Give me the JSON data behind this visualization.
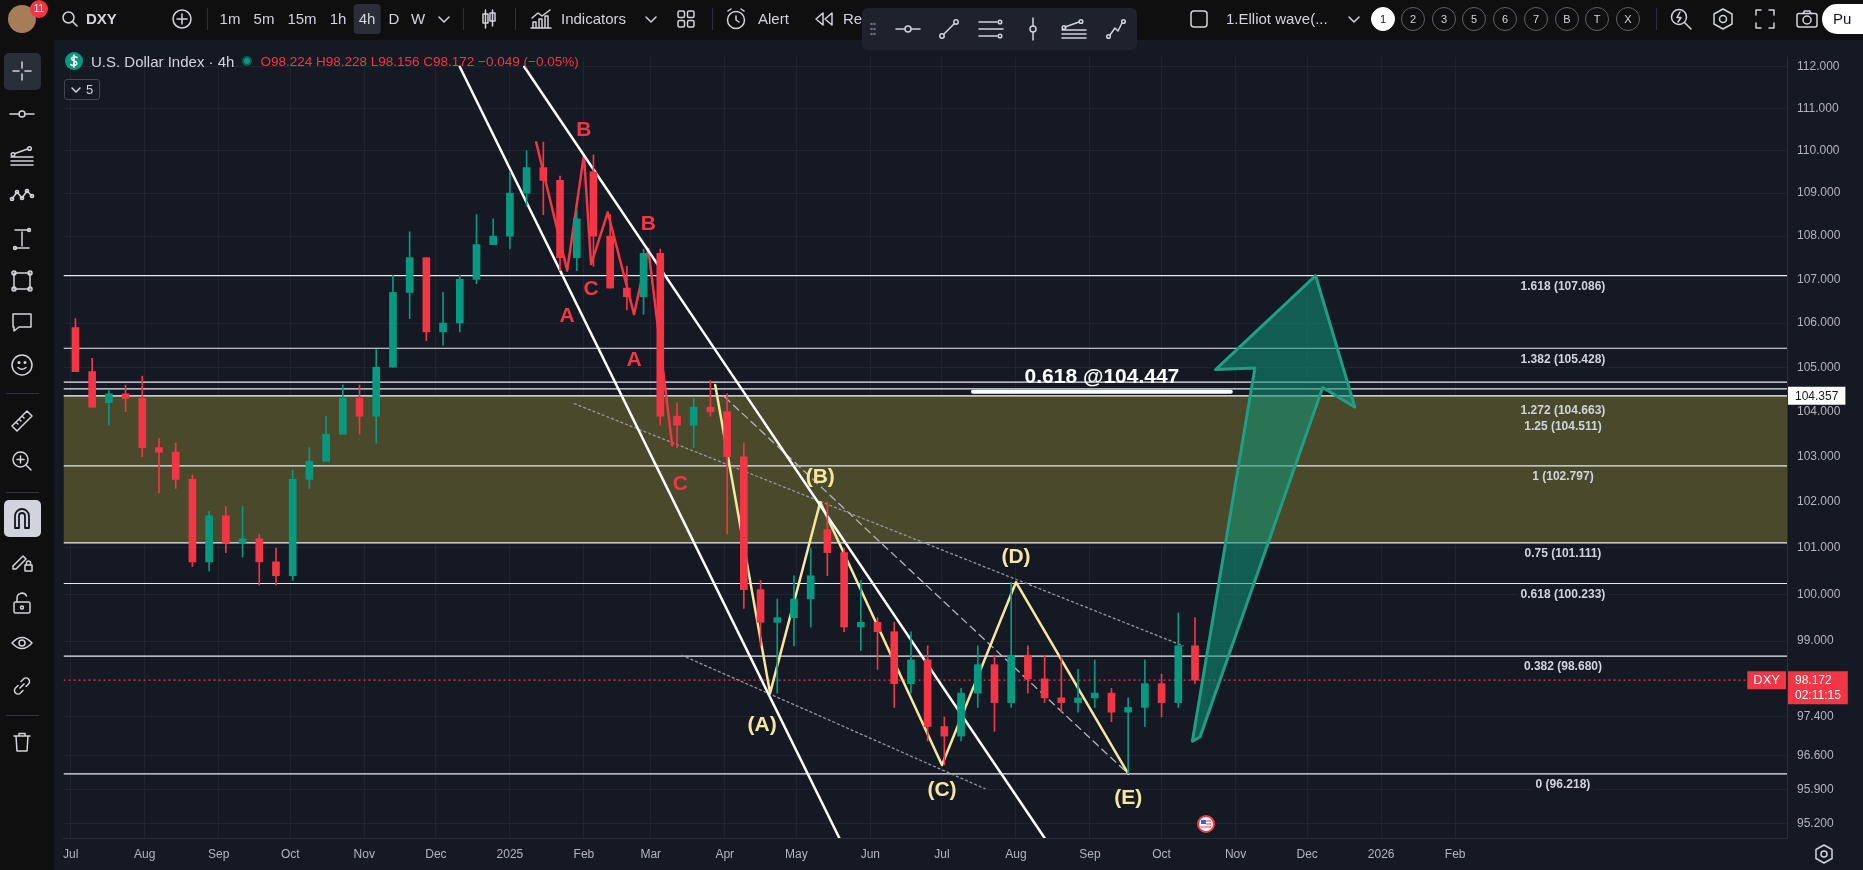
{
  "chart_data": {
    "type": "candlestick",
    "title": "U.S. Dollar Index · 4h",
    "subtitle": "O98.224 H98.228 L98.156 C98.172 −0.049 (−0.05%)",
    "x": [
      "2024-07-03",
      "2024-07-10",
      "2024-07-17",
      "2024-07-24",
      "2024-07-31",
      "2024-08-07",
      "2024-08-14",
      "2024-08-21",
      "2024-08-28",
      "2024-09-04",
      "2024-09-11",
      "2024-09-18",
      "2024-09-25",
      "2024-10-02",
      "2024-10-09",
      "2024-10-16",
      "2024-10-23",
      "2024-10-30",
      "2024-11-06",
      "2024-11-13",
      "2024-11-20",
      "2024-11-27",
      "2024-12-04",
      "2024-12-11",
      "2024-12-18",
      "2024-12-25",
      "2025-01-01",
      "2025-01-08",
      "2025-01-15",
      "2025-01-22",
      "2025-01-29",
      "2025-02-05",
      "2025-02-12",
      "2025-02-19",
      "2025-02-26",
      "2025-03-05",
      "2025-03-12",
      "2025-03-19",
      "2025-03-26",
      "2025-04-02",
      "2025-04-09",
      "2025-04-16",
      "2025-04-23",
      "2025-04-30",
      "2025-05-07",
      "2025-05-14",
      "2025-05-21",
      "2025-05-28",
      "2025-06-04",
      "2025-06-11",
      "2025-06-18",
      "2025-06-25",
      "2025-07-02",
      "2025-07-09",
      "2025-07-16",
      "2025-07-23",
      "2025-07-30",
      "2025-08-06",
      "2025-08-13",
      "2025-08-20",
      "2025-08-27",
      "2025-09-03",
      "2025-09-10",
      "2025-09-17",
      "2025-09-24",
      "2025-10-01",
      "2025-10-08",
      "2025-10-15"
    ],
    "ohlc": [
      [
        105.9,
        106.1,
        104.9,
        104.9
      ],
      [
        104.9,
        105.2,
        104.1,
        104.1
      ],
      [
        104.2,
        104.5,
        103.7,
        104.4
      ],
      [
        104.4,
        104.6,
        104.0,
        104.3
      ],
      [
        104.3,
        104.8,
        103.0,
        103.2
      ],
      [
        103.2,
        103.4,
        102.2,
        103.1
      ],
      [
        103.1,
        103.3,
        102.3,
        102.5
      ],
      [
        102.5,
        102.6,
        100.6,
        100.7
      ],
      [
        100.7,
        101.8,
        100.5,
        101.7
      ],
      [
        101.7,
        101.9,
        100.9,
        101.1
      ],
      [
        101.1,
        101.9,
        100.8,
        101.2
      ],
      [
        101.2,
        101.3,
        100.2,
        100.7
      ],
      [
        100.7,
        101.0,
        100.2,
        100.4
      ],
      [
        100.4,
        102.7,
        100.3,
        102.5
      ],
      [
        102.5,
        103.2,
        102.3,
        102.9
      ],
      [
        102.9,
        103.9,
        102.9,
        103.5
      ],
      [
        103.5,
        104.6,
        103.5,
        104.3
      ],
      [
        104.3,
        104.6,
        103.5,
        103.9
      ],
      [
        103.9,
        105.4,
        103.3,
        105.0
      ],
      [
        105.0,
        107.1,
        105.0,
        106.7
      ],
      [
        106.7,
        108.1,
        106.1,
        107.5
      ],
      [
        107.5,
        107.5,
        105.6,
        105.8
      ],
      [
        105.8,
        106.7,
        105.5,
        106.0
      ],
      [
        106.0,
        107.1,
        105.8,
        107.0
      ],
      [
        107.0,
        108.5,
        106.9,
        107.8
      ],
      [
        107.8,
        108.4,
        107.8,
        108.0
      ],
      [
        108.0,
        109.5,
        107.7,
        109.0
      ],
      [
        109.0,
        110.0,
        108.7,
        109.6
      ],
      [
        109.6,
        110.2,
        108.5,
        109.3
      ],
      [
        109.3,
        109.4,
        107.2,
        107.5
      ],
      [
        107.5,
        108.6,
        107.2,
        108.4
      ],
      [
        109.5,
        109.9,
        107.3,
        108.0
      ],
      [
        108.0,
        108.5,
        106.8,
        106.8
      ],
      [
        106.8,
        107.3,
        106.3,
        106.6
      ],
      [
        106.6,
        107.7,
        106.2,
        107.6
      ],
      [
        107.6,
        107.7,
        103.7,
        103.9
      ],
      [
        103.9,
        104.2,
        103.2,
        103.7
      ],
      [
        103.7,
        104.3,
        103.2,
        104.1
      ],
      [
        104.1,
        104.7,
        103.9,
        104.0
      ],
      [
        104.0,
        104.4,
        101.3,
        103.0
      ],
      [
        103.0,
        103.3,
        99.7,
        100.1
      ],
      [
        100.1,
        100.3,
        98.9,
        99.4
      ],
      [
        99.4,
        99.9,
        97.9,
        99.5
      ],
      [
        99.5,
        100.4,
        98.9,
        99.9
      ],
      [
        99.9,
        101.0,
        99.3,
        100.4
      ],
      [
        101.4,
        102.0,
        100.4,
        100.9
      ],
      [
        100.9,
        101.0,
        99.2,
        99.3
      ],
      [
        99.3,
        100.3,
        98.8,
        99.4
      ],
      [
        99.4,
        99.5,
        98.4,
        99.2
      ],
      [
        99.2,
        99.4,
        97.6,
        98.1
      ],
      [
        98.1,
        99.2,
        97.9,
        98.6
      ],
      [
        98.6,
        98.9,
        96.9,
        97.2
      ],
      [
        97.2,
        97.4,
        96.4,
        97.0
      ],
      [
        97.0,
        98.0,
        96.9,
        97.9
      ],
      [
        97.9,
        98.9,
        97.6,
        98.5
      ],
      [
        98.5,
        98.7,
        97.1,
        97.7
      ],
      [
        97.7,
        100.26,
        97.6,
        98.7
      ],
      [
        98.7,
        98.9,
        97.9,
        98.2
      ],
      [
        98.2,
        98.7,
        97.7,
        97.8
      ],
      [
        97.8,
        98.7,
        97.5,
        97.7
      ],
      [
        97.7,
        98.4,
        97.5,
        97.8
      ],
      [
        97.8,
        98.6,
        97.6,
        97.9
      ],
      [
        97.9,
        98.0,
        97.3,
        97.5
      ],
      [
        97.5,
        97.8,
        96.22,
        97.6
      ],
      [
        97.6,
        98.6,
        97.2,
        98.1
      ],
      [
        98.1,
        98.3,
        97.4,
        97.7
      ],
      [
        97.7,
        99.6,
        97.6,
        98.9
      ],
      [
        98.9,
        99.5,
        98.1,
        98.172
      ]
    ],
    "colors": [
      "#f23645",
      "#f23645",
      "#089981",
      "#f23645",
      "#f23645",
      "#f23645",
      "#f23645",
      "#f23645",
      "#089981",
      "#f23645",
      "#089981",
      "#f23645",
      "#f23645",
      "#089981",
      "#089981",
      "#089981",
      "#089981",
      "#f23645",
      "#089981",
      "#089981",
      "#089981",
      "#f23645",
      "#089981",
      "#089981",
      "#089981",
      "#089981",
      "#089981",
      "#089981",
      "#f23645",
      "#f23645",
      "#089981",
      "#f23645",
      "#f23645",
      "#f23645",
      "#089981",
      "#f23645",
      "#f23645",
      "#089981",
      "#f23645",
      "#f23645",
      "#f23645",
      "#f23645",
      "#089981",
      "#089981",
      "#089981",
      "#f23645",
      "#f23645",
      "#089981",
      "#f23645",
      "#f23645",
      "#089981",
      "#f23645",
      "#f23645",
      "#089981",
      "#089981",
      "#f23645",
      "#089981",
      "#f23645",
      "#f23645",
      "#f23645",
      "#089981",
      "#089981",
      "#f23645",
      "#089981",
      "#089981",
      "#f23645",
      "#089981",
      "#f23645"
    ],
    "series": [
      {
        "type": "line",
        "x": [
          "2024-12-11",
          "2025-05-19"
        ],
        "values": [
          112.0,
          94.9
        ],
        "color": "#ffffff"
      },
      {
        "type": "line",
        "x": [
          "2025-01-07",
          "2025-08-13"
        ],
        "values": [
          112.0,
          94.9
        ],
        "color": "#ffffff"
      },
      {
        "type": "line",
        "x": [
          "2025-01-12",
          "2025-01-25",
          "2025-02-01",
          "2025-02-04",
          "2025-02-11",
          "2025-02-22",
          "2025-02-28",
          "2025-03-10"
        ],
        "values": [
          110.2,
          107.2,
          109.9,
          107.35,
          108.55,
          106.2,
          107.7,
          103.25
        ],
        "value_labels": [
          null,
          "A",
          "B",
          "C",
          null,
          "A",
          "B",
          "C"
        ],
        "color": "#f23645"
      },
      {
        "type": "line",
        "x": [
          "2025-03-28",
          "2025-04-20",
          "2025-05-11",
          "2025-07-01",
          "2025-08-01",
          "2025-09-17"
        ],
        "values": [
          104.6,
          97.9,
          102.0,
          96.4,
          100.26,
          96.22
        ],
        "value_labels": [
          null,
          "(A)",
          "(B)",
          "(C)",
          "(D)",
          "(E)"
        ],
        "color": "#f5e6a0"
      },
      {
        "type": "line",
        "x": [
          "2025-04-01",
          "2025-09-17"
        ],
        "values": [
          104.33,
          96.22
        ],
        "color": "#b2b5be",
        "line_style": "dashed"
      },
      {
        "type": "line",
        "x": [
          "2025-01-28",
          "2025-10-10"
        ],
        "values": [
          104.18,
          98.9
        ],
        "color": "#9598a1",
        "line_style": "dotted"
      },
      {
        "type": "line",
        "x": [
          "2025-03-14",
          "2025-07-19"
        ],
        "values": [
          98.7,
          95.91
        ],
        "color": "#9598a1",
        "line_style": "dotted"
      },
      {
        "type": "line",
        "name": "0.618 @104.447",
        "x": [
          "2025-07-14",
          "2025-10-30"
        ],
        "values": [
          104.447,
          104.447
        ],
        "color": "#ffffff"
      }
    ],
    "xlim": [
      "2024-06-28",
      "2026-06-20"
    ],
    "xticks": [
      {
        "value": "2024-07-01",
        "label": "Jul"
      },
      {
        "value": "2024-08-01",
        "label": "Aug"
      },
      {
        "value": "2024-09-01",
        "label": "Sep"
      },
      {
        "value": "2024-10-01",
        "label": "Oct"
      },
      {
        "value": "2024-11-01",
        "label": "Nov"
      },
      {
        "value": "2024-12-01",
        "label": "Dec"
      },
      {
        "value": "2025-01-01",
        "label": "2025"
      },
      {
        "value": "2025-02-01",
        "label": "Feb"
      },
      {
        "value": "2025-03-01",
        "label": "Mar"
      },
      {
        "value": "2025-04-01",
        "label": "Apr"
      },
      {
        "value": "2025-05-01",
        "label": "May"
      },
      {
        "value": "2025-06-01",
        "label": "Jun"
      },
      {
        "value": "2025-07-01",
        "label": "Jul"
      },
      {
        "value": "2025-08-01",
        "label": "Aug"
      },
      {
        "value": "2025-09-01",
        "label": "Sep"
      },
      {
        "value": "2025-10-01",
        "label": "Oct"
      },
      {
        "value": "2025-11-01",
        "label": "Nov"
      },
      {
        "value": "2025-12-01",
        "label": "Dec"
      },
      {
        "value": "2026-01-01",
        "label": "2026"
      },
      {
        "value": "2026-02-01",
        "label": "Feb"
      }
    ],
    "ylim": [
      94.9,
      112.23
    ],
    "yticks": [
      {
        "value": 112,
        "label": "112.000"
      },
      {
        "value": 111,
        "label": "111.000"
      },
      {
        "value": 110,
        "label": "110.000"
      },
      {
        "value": 109,
        "label": "109.000"
      },
      {
        "value": 108,
        "label": "108.000"
      },
      {
        "value": 107,
        "label": "107.000"
      },
      {
        "value": 106,
        "label": "106.000"
      },
      {
        "value": 105,
        "label": "105.000"
      },
      {
        "value": 104,
        "label": "104.000"
      },
      {
        "value": 103,
        "label": "103.000"
      },
      {
        "value": 102,
        "label": "102.000"
      },
      {
        "value": 101,
        "label": "101.000"
      },
      {
        "value": 100,
        "label": "100.000"
      },
      {
        "value": 99,
        "label": "99.000"
      },
      {
        "value": 97.4,
        "label": "97.400"
      },
      {
        "value": 96.6,
        "label": "96.600"
      },
      {
        "value": 95.9,
        "label": "95.900"
      },
      {
        "value": 95.2,
        "label": "95.200"
      }
    ],
    "log": true,
    "grid": true,
    "ref_lines": [
      {
        "axis": "y",
        "value": 107.086,
        "label": "1.618 (107.086)"
      },
      {
        "axis": "y",
        "value": 105.428,
        "label": "1.382 (105.428)"
      },
      {
        "axis": "y",
        "value": 104.663,
        "label": "1.272 (104.663)"
      },
      {
        "axis": "y",
        "value": 104.511,
        "label": "1.25 (104.511)"
      },
      {
        "axis": "y",
        "value": 104.357,
        "label": "104.357",
        "color": "#ffffff"
      },
      {
        "axis": "y",
        "value": 102.797,
        "label": "1 (102.797)"
      },
      {
        "axis": "y",
        "value": 101.111,
        "label": "0.75 (101.111)"
      },
      {
        "axis": "y",
        "value": 100.233,
        "label": "0.618 (100.233)"
      },
      {
        "axis": "y",
        "value": 98.68,
        "label": "0.382 (98.680)"
      },
      {
        "axis": "y",
        "value": 98.172,
        "label": "98.172\n02:11:15",
        "color": "#f23645",
        "line_style": "dotted"
      },
      {
        "axis": "y",
        "value": 96.218,
        "label": "0 (96.218)"
      }
    ],
    "bands": [
      {
        "axis": "y",
        "from": 101.111,
        "to": 104.357,
        "color": "#4a492c"
      }
    ],
    "annotations": [
      "DXY",
      "1m",
      "5m",
      "15m",
      "1h",
      "4h",
      "D",
      "W",
      "Indicators",
      "Alert",
      "Re",
      "1.Elliot wave(...",
      "1",
      "2",
      "3",
      "5",
      "6",
      "7",
      "B",
      "T",
      "X",
      "Pu",
      "11",
      "5",
      {
        "text": "DXY",
        "y": 98.172
      }
    ]
  }
}
